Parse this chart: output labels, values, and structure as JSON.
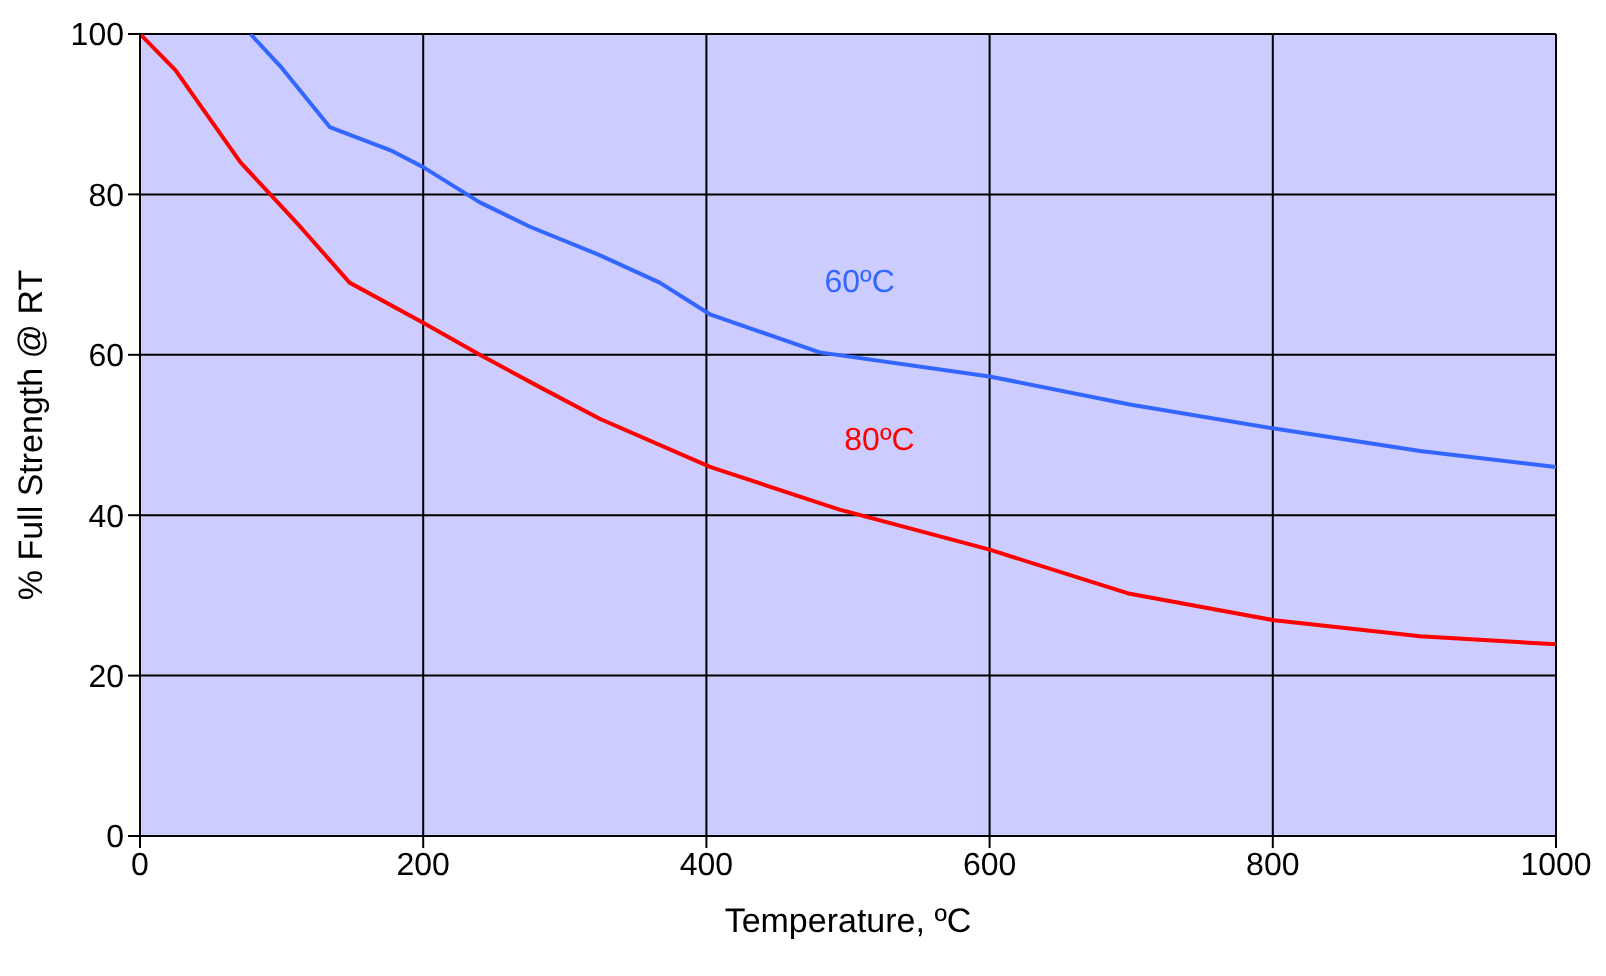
{
  "chart_data": {
    "type": "line",
    "xlabel": "Temperature, ºC",
    "ylabel": "% Full Strength @ RT",
    "xlim": [
      0,
      1000
    ],
    "xticks": [
      0,
      200,
      400,
      600,
      800,
      1000
    ],
    "ylim": [
      0,
      100
    ],
    "yticks": [
      0,
      20,
      40,
      60,
      80,
      100
    ],
    "grid": true,
    "marker": "none",
    "line_style": "solid",
    "series": [
      {
        "name": "60ºC",
        "color": "#3366ff",
        "x": [
          78,
          99,
          134,
          177,
          200,
          240,
          275,
          325,
          367,
          403,
          480,
          600,
          699,
          801,
          904,
          1000
        ],
        "values": [
          100,
          96,
          88.4,
          85.5,
          83.4,
          79,
          76,
          72.4,
          69,
          65,
          60.3,
          57.3,
          53.8,
          50.8,
          48,
          46
        ]
      },
      {
        "name": "80ºC",
        "color": "#ff0000",
        "x": [
          0,
          25,
          71,
          113,
          148,
          200,
          240,
          282,
          325,
          403,
          494,
          600,
          699,
          801,
          904,
          1000
        ],
        "values": [
          100,
          95.5,
          84,
          76,
          69,
          64,
          60,
          56,
          52,
          46,
          40.7,
          35.7,
          30.2,
          26.9,
          24.9,
          23.9
        ]
      }
    ]
  }
}
